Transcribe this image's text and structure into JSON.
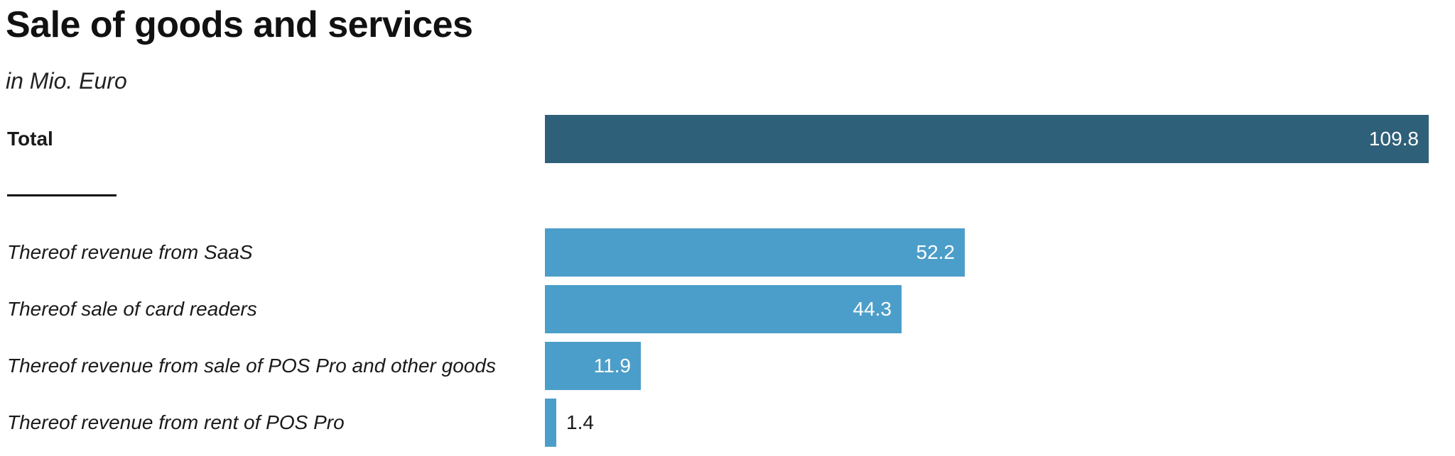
{
  "title": "Sale of goods and services",
  "subtitle": "in Mio. Euro",
  "colors": {
    "total_bar": "#2f6079",
    "sub_bar": "#4b9ec9",
    "text": "#1a1a1a",
    "inside_label": "#ffffff"
  },
  "chart_data": {
    "type": "bar",
    "orientation": "horizontal",
    "categories": [
      "Total",
      "Thereof revenue from SaaS",
      "Thereof sale of card readers",
      "Thereof revenue from sale of POS Pro and other goods",
      "Thereof revenue from rent of POS Pro"
    ],
    "values": [
      109.8,
      52.2,
      44.3,
      11.9,
      1.4
    ],
    "value_labels": [
      "109.8",
      "52.2",
      "44.3",
      "11.9",
      "1.4"
    ],
    "title": "Sale of goods and services",
    "subtitle": "in Mio. Euro",
    "xlabel": "",
    "ylabel": "",
    "xlim": [
      0,
      109.8
    ],
    "grid": false,
    "legend": "none"
  }
}
